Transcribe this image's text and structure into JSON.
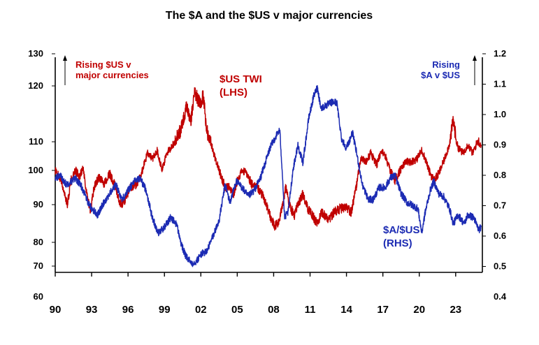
{
  "chart_data": {
    "type": "line",
    "title": "The $A and the $US v major currencies",
    "x_tick_labels": [
      "90",
      "93",
      "96",
      "99",
      "02",
      "05",
      "08",
      "11",
      "14",
      "17",
      "20",
      "23"
    ],
    "x_range": [
      1990,
      2025.2
    ],
    "left_axis": {
      "ticks": [
        130,
        120,
        110,
        100,
        90,
        80,
        70,
        60
      ]
    },
    "right_axis": {
      "ticks": [
        "1.2",
        "1.1",
        "1.0",
        "0.9",
        "0.8",
        "0.7",
        "0.6",
        "0.5",
        "0.4"
      ]
    },
    "annotations": {
      "left_arrow_text": [
        "Rising  $US v",
        "major currencies"
      ],
      "right_arrow_text": [
        "Rising",
        "$A v $US"
      ]
    },
    "series": [
      {
        "name": "$US TWI",
        "label_lines": [
          "$US TWI",
          "(LHS)"
        ],
        "axis": "left",
        "color": "#c00000",
        "points": [
          [
            1990.0,
            100
          ],
          [
            1990.5,
            97
          ],
          [
            1991.0,
            90
          ],
          [
            1991.3,
            97
          ],
          [
            1991.7,
            100
          ],
          [
            1992.0,
            98
          ],
          [
            1992.3,
            101
          ],
          [
            1992.6,
            93
          ],
          [
            1992.9,
            88
          ],
          [
            1993.2,
            95
          ],
          [
            1993.6,
            98
          ],
          [
            1994.0,
            96
          ],
          [
            1994.5,
            99
          ],
          [
            1995.0,
            95
          ],
          [
            1995.3,
            90
          ],
          [
            1995.7,
            91
          ],
          [
            1996.2,
            95
          ],
          [
            1996.7,
            96
          ],
          [
            1997.1,
            99
          ],
          [
            1997.6,
            106
          ],
          [
            1998.0,
            104
          ],
          [
            1998.4,
            107
          ],
          [
            1998.8,
            100
          ],
          [
            1999.2,
            106
          ],
          [
            1999.7,
            109
          ],
          [
            2000.3,
            112
          ],
          [
            2000.8,
            116
          ],
          [
            2001.2,
            114
          ],
          [
            2001.5,
            119
          ],
          [
            2001.9,
            117
          ],
          [
            2002.2,
            118
          ],
          [
            2002.5,
            112
          ],
          [
            2002.8,
            110
          ],
          [
            2003.2,
            104
          ],
          [
            2003.6,
            99
          ],
          [
            2004.0,
            95
          ],
          [
            2004.3,
            95
          ],
          [
            2004.7,
            93
          ],
          [
            2005.0,
            97
          ],
          [
            2005.4,
            100
          ],
          [
            2005.8,
            99
          ],
          [
            2006.2,
            96
          ],
          [
            2006.7,
            95
          ],
          [
            2007.2,
            92
          ],
          [
            2007.7,
            87
          ],
          [
            2008.1,
            84
          ],
          [
            2008.5,
            86
          ],
          [
            2009.0,
            95
          ],
          [
            2009.3,
            90
          ],
          [
            2009.7,
            87
          ],
          [
            2010.0,
            90
          ],
          [
            2010.4,
            93
          ],
          [
            2010.8,
            89
          ],
          [
            2011.2,
            87
          ],
          [
            2011.6,
            85
          ],
          [
            2012.0,
            88
          ],
          [
            2012.5,
            86
          ],
          [
            2013.0,
            88
          ],
          [
            2013.5,
            89
          ],
          [
            2014.0,
            89
          ],
          [
            2014.4,
            88
          ],
          [
            2014.8,
            95
          ],
          [
            2015.2,
            104
          ],
          [
            2015.6,
            103
          ],
          [
            2016.0,
            106
          ],
          [
            2016.5,
            102
          ],
          [
            2016.9,
            107
          ],
          [
            2017.2,
            105
          ],
          [
            2017.6,
            100
          ],
          [
            2018.0,
            97
          ],
          [
            2018.4,
            100
          ],
          [
            2018.9,
            103
          ],
          [
            2019.3,
            103
          ],
          [
            2019.8,
            104
          ],
          [
            2020.2,
            107
          ],
          [
            2020.5,
            104
          ],
          [
            2020.8,
            100
          ],
          [
            2021.2,
            97
          ],
          [
            2021.6,
            99
          ],
          [
            2022.0,
            103
          ],
          [
            2022.4,
            108
          ],
          [
            2022.8,
            114
          ],
          [
            2023.2,
            108
          ],
          [
            2023.6,
            106
          ],
          [
            2024.0,
            109
          ],
          [
            2024.4,
            106
          ],
          [
            2024.8,
            110
          ],
          [
            2025.1,
            109
          ]
        ]
      },
      {
        "name": "$A/$US",
        "label_lines": [
          "$A/$US",
          "(RHS)"
        ],
        "axis": "right",
        "color": "#1c2bb3",
        "points": [
          [
            1990.0,
            0.79
          ],
          [
            1990.4,
            0.8
          ],
          [
            1990.9,
            0.77
          ],
          [
            1991.3,
            0.78
          ],
          [
            1991.7,
            0.79
          ],
          [
            1992.2,
            0.76
          ],
          [
            1992.6,
            0.72
          ],
          [
            1993.0,
            0.69
          ],
          [
            1993.5,
            0.67
          ],
          [
            1994.0,
            0.71
          ],
          [
            1994.5,
            0.74
          ],
          [
            1995.0,
            0.77
          ],
          [
            1995.5,
            0.72
          ],
          [
            1996.0,
            0.75
          ],
          [
            1996.5,
            0.78
          ],
          [
            1997.0,
            0.79
          ],
          [
            1997.5,
            0.75
          ],
          [
            1998.0,
            0.66
          ],
          [
            1998.5,
            0.61
          ],
          [
            1999.0,
            0.63
          ],
          [
            1999.5,
            0.66
          ],
          [
            2000.0,
            0.64
          ],
          [
            2000.4,
            0.57
          ],
          [
            2000.8,
            0.53
          ],
          [
            2001.3,
            0.51
          ],
          [
            2001.7,
            0.52
          ],
          [
            2002.0,
            0.54
          ],
          [
            2002.5,
            0.55
          ],
          [
            2003.0,
            0.6
          ],
          [
            2003.5,
            0.65
          ],
          [
            2004.0,
            0.77
          ],
          [
            2004.4,
            0.71
          ],
          [
            2004.9,
            0.78
          ],
          [
            2005.4,
            0.76
          ],
          [
            2005.9,
            0.73
          ],
          [
            2006.4,
            0.75
          ],
          [
            2006.9,
            0.79
          ],
          [
            2007.3,
            0.84
          ],
          [
            2007.7,
            0.89
          ],
          [
            2008.2,
            0.93
          ],
          [
            2008.5,
            0.95
          ],
          [
            2008.7,
            0.82
          ],
          [
            2008.9,
            0.66
          ],
          [
            2009.2,
            0.68
          ],
          [
            2009.6,
            0.82
          ],
          [
            2010.0,
            0.9
          ],
          [
            2010.4,
            0.84
          ],
          [
            2010.9,
            0.99
          ],
          [
            2011.3,
            1.06
          ],
          [
            2011.6,
            1.09
          ],
          [
            2011.9,
            1.02
          ],
          [
            2012.3,
            1.03
          ],
          [
            2012.8,
            1.04
          ],
          [
            2013.2,
            1.04
          ],
          [
            2013.6,
            0.92
          ],
          [
            2014.0,
            0.89
          ],
          [
            2014.5,
            0.94
          ],
          [
            2014.9,
            0.86
          ],
          [
            2015.3,
            0.77
          ],
          [
            2015.8,
            0.72
          ],
          [
            2016.2,
            0.72
          ],
          [
            2016.7,
            0.76
          ],
          [
            2017.2,
            0.76
          ],
          [
            2017.6,
            0.79
          ],
          [
            2018.0,
            0.8
          ],
          [
            2018.5,
            0.74
          ],
          [
            2019.0,
            0.71
          ],
          [
            2019.5,
            0.7
          ],
          [
            2019.9,
            0.69
          ],
          [
            2020.2,
            0.61
          ],
          [
            2020.5,
            0.68
          ],
          [
            2020.9,
            0.75
          ],
          [
            2021.2,
            0.78
          ],
          [
            2021.6,
            0.74
          ],
          [
            2022.0,
            0.73
          ],
          [
            2022.5,
            0.69
          ],
          [
            2022.8,
            0.64
          ],
          [
            2023.2,
            0.67
          ],
          [
            2023.7,
            0.64
          ],
          [
            2024.0,
            0.67
          ],
          [
            2024.5,
            0.66
          ],
          [
            2024.9,
            0.62
          ],
          [
            2025.1,
            0.63
          ]
        ]
      }
    ]
  }
}
